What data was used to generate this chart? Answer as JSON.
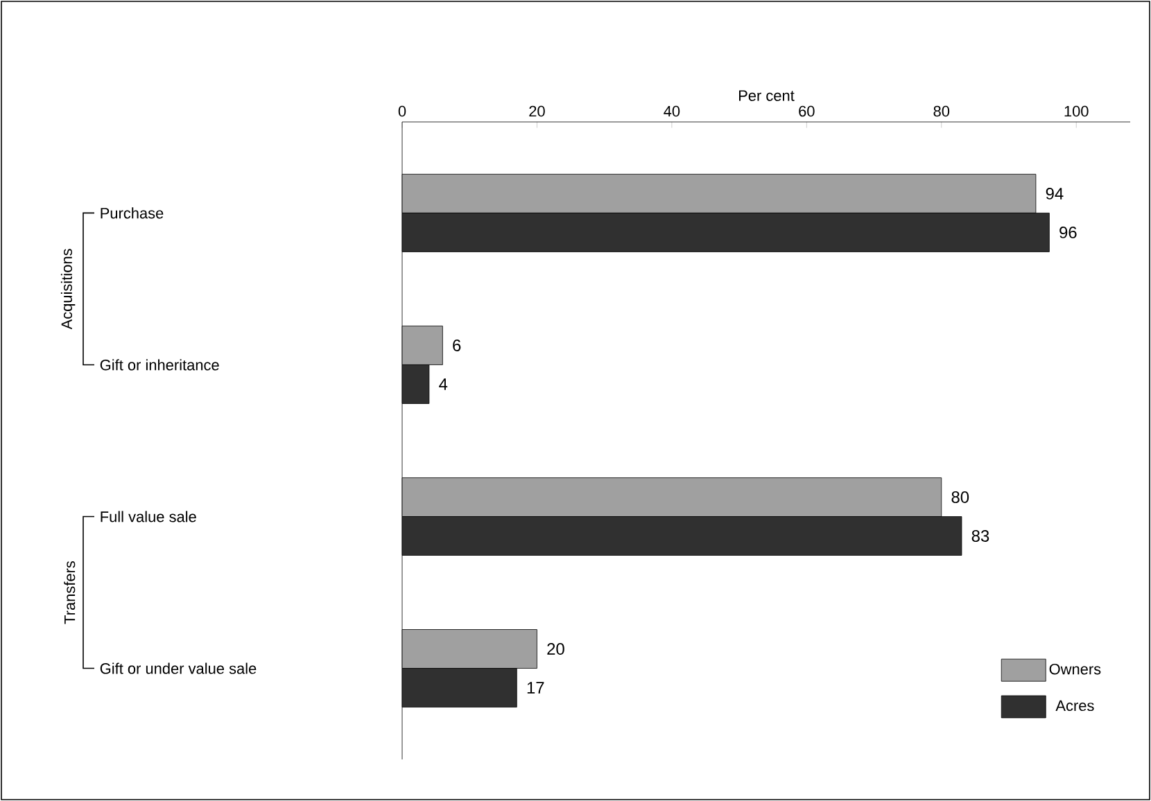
{
  "chart_data": {
    "type": "bar",
    "orientation": "horizontal",
    "xlabel": "Per cent",
    "categories": [
      "Purchase",
      "Gift or inheritance",
      "Full value sale",
      "Gift or under value sale"
    ],
    "series": [
      {
        "name": "Owners",
        "color": "#a0a0a0",
        "values": [
          94,
          6,
          80,
          20
        ]
      },
      {
        "name": "Acres",
        "color": "#303030",
        "values": [
          96,
          4,
          83,
          17
        ]
      }
    ],
    "xlim": [
      0,
      108
    ],
    "xticks": [
      0,
      20,
      40,
      60,
      80,
      100
    ],
    "data_labels": true,
    "legend": "bottom right",
    "annotations": [
      "Acquisitions",
      "Transfers"
    ]
  }
}
